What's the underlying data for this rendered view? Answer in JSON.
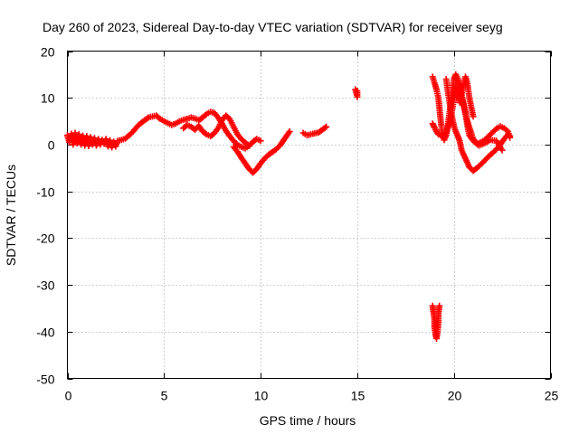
{
  "chart_data": {
    "type": "scatter",
    "title": "Day 260 of 2023, Sidereal Day-to-day VTEC variation (SDTVAR) for receiver seyg",
    "xlabel": "GPS time / hours",
    "ylabel": "SDTVAR / TECUs",
    "xlim": [
      0,
      25
    ],
    "ylim": [
      -50,
      20
    ],
    "xticks": [
      0,
      5,
      10,
      15,
      20,
      25
    ],
    "yticks": [
      20,
      10,
      0,
      -10,
      -20,
      -30,
      -40,
      -50
    ],
    "xtick_labels": [
      "0",
      "5",
      "10",
      "15",
      "20",
      "25"
    ],
    "ytick_labels": [
      "20",
      "10",
      "0",
      "-10",
      "-20",
      "-30",
      "-40",
      "-50"
    ],
    "grid": true,
    "marker": "+",
    "series": [
      {
        "name": "SDTVAR",
        "color": "#ff0000",
        "segments": [
          [
            [
              0.0,
              2.0
            ],
            [
              0.1,
              0.5
            ],
            [
              0.2,
              2.3
            ],
            [
              0.3,
              0.0
            ],
            [
              0.4,
              2.5
            ],
            [
              0.5,
              0.3
            ],
            [
              0.6,
              2.2
            ],
            [
              0.7,
              0.0
            ],
            [
              0.8,
              1.9
            ],
            [
              0.9,
              -0.2
            ],
            [
              1.0,
              1.8
            ],
            [
              1.1,
              -0.3
            ],
            [
              1.2,
              1.6
            ],
            [
              1.3,
              0.0
            ],
            [
              1.4,
              1.4
            ],
            [
              1.5,
              -0.2
            ],
            [
              1.6,
              1.2
            ],
            [
              1.7,
              0.0
            ],
            [
              1.8,
              1.0
            ],
            [
              1.9,
              0.2
            ],
            [
              2.0,
              1.2
            ],
            [
              2.1,
              -0.4
            ],
            [
              2.2,
              0.9
            ],
            [
              2.3,
              -0.6
            ],
            [
              2.4,
              0.6
            ],
            [
              2.5,
              -0.4
            ],
            [
              2.6,
              0.8
            ],
            [
              2.8,
              1.0
            ],
            [
              3.0,
              1.3
            ],
            [
              3.2,
              2.0
            ],
            [
              3.4,
              2.8
            ],
            [
              3.6,
              3.8
            ],
            [
              3.8,
              4.6
            ],
            [
              4.0,
              5.2
            ],
            [
              4.2,
              5.8
            ],
            [
              4.4,
              6.0
            ],
            [
              4.6,
              6.2
            ],
            [
              4.8,
              5.5
            ],
            [
              5.0,
              5.0
            ],
            [
              5.2,
              4.6
            ],
            [
              5.4,
              4.2
            ],
            [
              5.6,
              4.5
            ],
            [
              5.8,
              5.0
            ],
            [
              6.0,
              5.3
            ],
            [
              6.2,
              5.5
            ],
            [
              6.4,
              5.8
            ],
            [
              6.6,
              5.6
            ],
            [
              6.8,
              5.2
            ],
            [
              7.0,
              5.8
            ],
            [
              7.2,
              6.5
            ],
            [
              7.4,
              7.0
            ],
            [
              7.6,
              6.8
            ],
            [
              7.8,
              5.8
            ],
            [
              8.0,
              4.5
            ],
            [
              8.2,
              3.0
            ],
            [
              8.4,
              1.8
            ],
            [
              8.6,
              0.8
            ],
            [
              8.8,
              0.0
            ],
            [
              9.0,
              -0.5
            ],
            [
              9.2,
              -0.8
            ],
            [
              9.4,
              -0.3
            ],
            [
              9.6,
              0.6
            ],
            [
              9.8,
              1.2
            ],
            [
              10.0,
              0.8
            ]
          ],
          [
            [
              6.0,
              3.5
            ],
            [
              6.2,
              4.2
            ],
            [
              6.4,
              3.8
            ],
            [
              6.6,
              3.2
            ],
            [
              6.8,
              4.0
            ],
            [
              7.0,
              2.8
            ],
            [
              7.2,
              2.2
            ],
            [
              7.4,
              1.8
            ],
            [
              7.6,
              2.4
            ],
            [
              7.8,
              3.5
            ],
            [
              8.0,
              5.2
            ],
            [
              8.2,
              6.2
            ],
            [
              8.4,
              5.5
            ],
            [
              8.6,
              3.8
            ],
            [
              8.8,
              2.2
            ],
            [
              9.0,
              1.2
            ],
            [
              9.2,
              0.4
            ],
            [
              9.4,
              -0.2
            ]
          ],
          [
            [
              8.6,
              -0.5
            ],
            [
              8.8,
              -1.5
            ],
            [
              9.0,
              -2.8
            ],
            [
              9.2,
              -4.0
            ],
            [
              9.4,
              -5.2
            ],
            [
              9.6,
              -6.0
            ],
            [
              9.8,
              -5.2
            ],
            [
              10.0,
              -4.0
            ],
            [
              10.2,
              -3.0
            ],
            [
              10.4,
              -2.2
            ],
            [
              10.6,
              -1.6
            ],
            [
              10.8,
              -1.0
            ],
            [
              11.0,
              -0.2
            ],
            [
              11.2,
              1.0
            ],
            [
              11.4,
              2.2
            ],
            [
              11.5,
              2.8
            ]
          ],
          [
            [
              12.2,
              2.5
            ],
            [
              12.4,
              2.0
            ],
            [
              12.6,
              2.2
            ],
            [
              12.8,
              2.4
            ],
            [
              13.0,
              2.6
            ],
            [
              13.2,
              3.2
            ],
            [
              13.4,
              3.8
            ]
          ],
          [
            [
              14.9,
              11.8
            ],
            [
              14.95,
              11.0
            ],
            [
              15.0,
              10.2
            ],
            [
              15.0,
              11.5
            ]
          ],
          [
            [
              18.9,
              -34.5
            ],
            [
              18.95,
              -36.0
            ],
            [
              19.0,
              -37.5
            ],
            [
              19.0,
              -39.0
            ],
            [
              19.05,
              -40.5
            ],
            [
              19.1,
              -41.5
            ],
            [
              19.15,
              -40.0
            ],
            [
              19.2,
              -38.0
            ],
            [
              19.2,
              -36.0
            ],
            [
              19.25,
              -34.5
            ]
          ],
          [
            [
              18.9,
              14.5
            ],
            [
              19.0,
              13.2
            ],
            [
              19.1,
              11.8
            ],
            [
              19.2,
              10.0
            ],
            [
              19.25,
              8.0
            ],
            [
              19.3,
              6.0
            ],
            [
              19.35,
              4.0
            ],
            [
              19.4,
              2.2
            ],
            [
              19.5,
              1.0
            ],
            [
              19.6,
              2.0
            ],
            [
              19.7,
              4.5
            ],
            [
              19.8,
              7.5
            ],
            [
              19.9,
              11.0
            ],
            [
              20.0,
              14.0
            ],
            [
              20.1,
              15.0
            ],
            [
              20.2,
              14.2
            ],
            [
              20.3,
              12.5
            ],
            [
              20.4,
              10.5
            ],
            [
              20.5,
              8.5
            ],
            [
              20.6,
              6.5
            ],
            [
              20.7,
              5.0
            ],
            [
              20.8,
              3.6
            ],
            [
              20.9,
              2.5
            ],
            [
              21.0,
              1.2
            ],
            [
              21.2,
              0.2
            ],
            [
              21.4,
              0.5
            ],
            [
              21.6,
              1.0
            ],
            [
              21.8,
              1.8
            ],
            [
              22.0,
              2.6
            ],
            [
              22.2,
              3.4
            ],
            [
              22.4,
              3.9
            ],
            [
              22.6,
              3.5
            ],
            [
              22.8,
              2.8
            ],
            [
              22.9,
              1.5
            ]
          ],
          [
            [
              18.9,
              4.5
            ],
            [
              19.0,
              3.6
            ],
            [
              19.1,
              2.8
            ],
            [
              19.2,
              2.2
            ],
            [
              19.4,
              1.8
            ],
            [
              19.6,
              2.6
            ],
            [
              19.8,
              5.0
            ],
            [
              20.0,
              9.5
            ],
            [
              20.1,
              12.5
            ],
            [
              20.2,
              11.0
            ],
            [
              20.3,
              9.0
            ],
            [
              20.5,
              12.8
            ],
            [
              20.6,
              14.5
            ],
            [
              20.7,
              13.0
            ],
            [
              20.8,
              10.0
            ],
            [
              20.9,
              8.0
            ],
            [
              21.0,
              6.0
            ]
          ],
          [
            [
              19.6,
              14.0
            ],
            [
              19.7,
              11.0
            ],
            [
              19.8,
              8.5
            ],
            [
              19.9,
              6.0
            ],
            [
              20.0,
              4.0
            ],
            [
              20.1,
              2.8
            ],
            [
              20.2,
              1.8
            ],
            [
              20.3,
              0.8
            ],
            [
              20.4,
              -1.2
            ],
            [
              20.6,
              -3.0
            ],
            [
              20.8,
              -4.8
            ],
            [
              21.0,
              -5.6
            ],
            [
              21.2,
              -5.0
            ],
            [
              21.4,
              -4.2
            ],
            [
              21.6,
              -3.4
            ],
            [
              21.8,
              -2.5
            ],
            [
              22.0,
              -1.8
            ],
            [
              22.2,
              -1.0
            ],
            [
              22.4,
              0.0
            ],
            [
              22.6,
              1.2
            ],
            [
              22.8,
              2.2
            ],
            [
              22.9,
              1.8
            ]
          ],
          [
            [
              20.2,
              13.8
            ],
            [
              20.4,
              10.5
            ],
            [
              20.6,
              7.0
            ],
            [
              20.7,
              4.0
            ],
            [
              20.8,
              2.0
            ],
            [
              21.0,
              0.8
            ],
            [
              21.3,
              -0.2
            ],
            [
              21.6,
              0.3
            ],
            [
              21.9,
              1.0
            ],
            [
              22.2,
              0.8
            ],
            [
              22.5,
              -1.2
            ]
          ]
        ]
      }
    ]
  }
}
